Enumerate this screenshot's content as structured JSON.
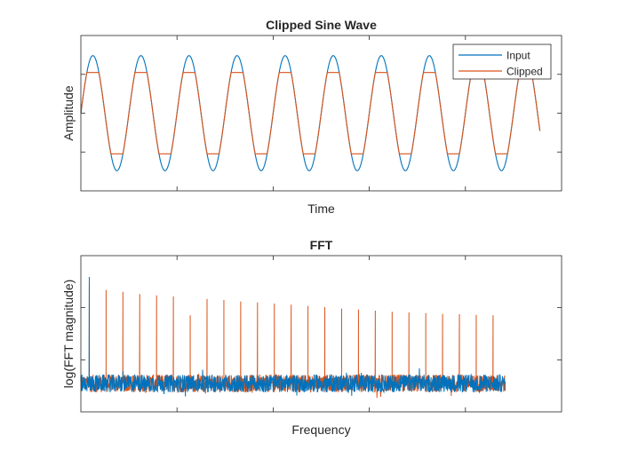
{
  "colors": {
    "input": "#0072BD",
    "clipped": "#D95319",
    "axes": "#262626",
    "background": "#ffffff"
  },
  "chart_data": [
    {
      "type": "line",
      "title": "Clipped Sine Wave",
      "xlabel": "Time",
      "ylabel": "Amplitude",
      "tick_labels_shown": false,
      "grid": false,
      "legend": {
        "position": "top-right",
        "entries": [
          "Input",
          "Clipped"
        ]
      },
      "xlim": [
        0,
        1
      ],
      "ylim": [
        -1.35,
        1.35
      ],
      "series": [
        {
          "name": "Input",
          "color": "#0072BD",
          "form": "sine",
          "amplitude": 1.0,
          "cycles": 10,
          "phase_deg": 0,
          "x_end": 0.955
        },
        {
          "name": "Clipped",
          "color": "#D95319",
          "form": "sine clipped at ±clip_level",
          "amplitude": 1.0,
          "clip_level": 0.707,
          "cycles": 10,
          "phase_deg": 0,
          "x_end": 0.955
        }
      ]
    },
    {
      "type": "line",
      "title": "FFT",
      "xlabel": "Frequency",
      "ylabel": "log(FFT magnitude)",
      "tick_labels_shown": false,
      "grid": false,
      "xlim": [
        0,
        1
      ],
      "ylim": [
        -0.8,
        3.6
      ],
      "noise_floor": 0.0,
      "x_end": 0.883,
      "series": [
        {
          "name": "Clipped",
          "color": "#D95319",
          "peaks": [
            {
              "x": 0.0175,
              "y": 2.78
            },
            {
              "x": 0.0525,
              "y": 2.63
            },
            {
              "x": 0.0875,
              "y": 2.58
            },
            {
              "x": 0.1225,
              "y": 2.52
            },
            {
              "x": 0.1575,
              "y": 2.48
            },
            {
              "x": 0.1925,
              "y": 2.45
            },
            {
              "x": 0.2275,
              "y": 1.92
            },
            {
              "x": 0.2625,
              "y": 2.38
            },
            {
              "x": 0.2975,
              "y": 2.35
            },
            {
              "x": 0.3325,
              "y": 2.31
            },
            {
              "x": 0.3675,
              "y": 2.28
            },
            {
              "x": 0.4025,
              "y": 2.25
            },
            {
              "x": 0.4375,
              "y": 2.22
            },
            {
              "x": 0.4725,
              "y": 2.18
            },
            {
              "x": 0.5075,
              "y": 2.15
            },
            {
              "x": 0.5425,
              "y": 2.11
            },
            {
              "x": 0.5775,
              "y": 2.08
            },
            {
              "x": 0.6125,
              "y": 2.05
            },
            {
              "x": 0.6475,
              "y": 2.02
            },
            {
              "x": 0.6825,
              "y": 2.0
            },
            {
              "x": 0.7175,
              "y": 1.98
            },
            {
              "x": 0.7525,
              "y": 1.96
            },
            {
              "x": 0.7875,
              "y": 1.95
            },
            {
              "x": 0.8225,
              "y": 1.93
            },
            {
              "x": 0.8575,
              "y": 1.92
            }
          ]
        },
        {
          "name": "Input",
          "color": "#0072BD",
          "peaks": [
            {
              "x": 0.0175,
              "y": 3.0
            }
          ]
        }
      ]
    }
  ]
}
